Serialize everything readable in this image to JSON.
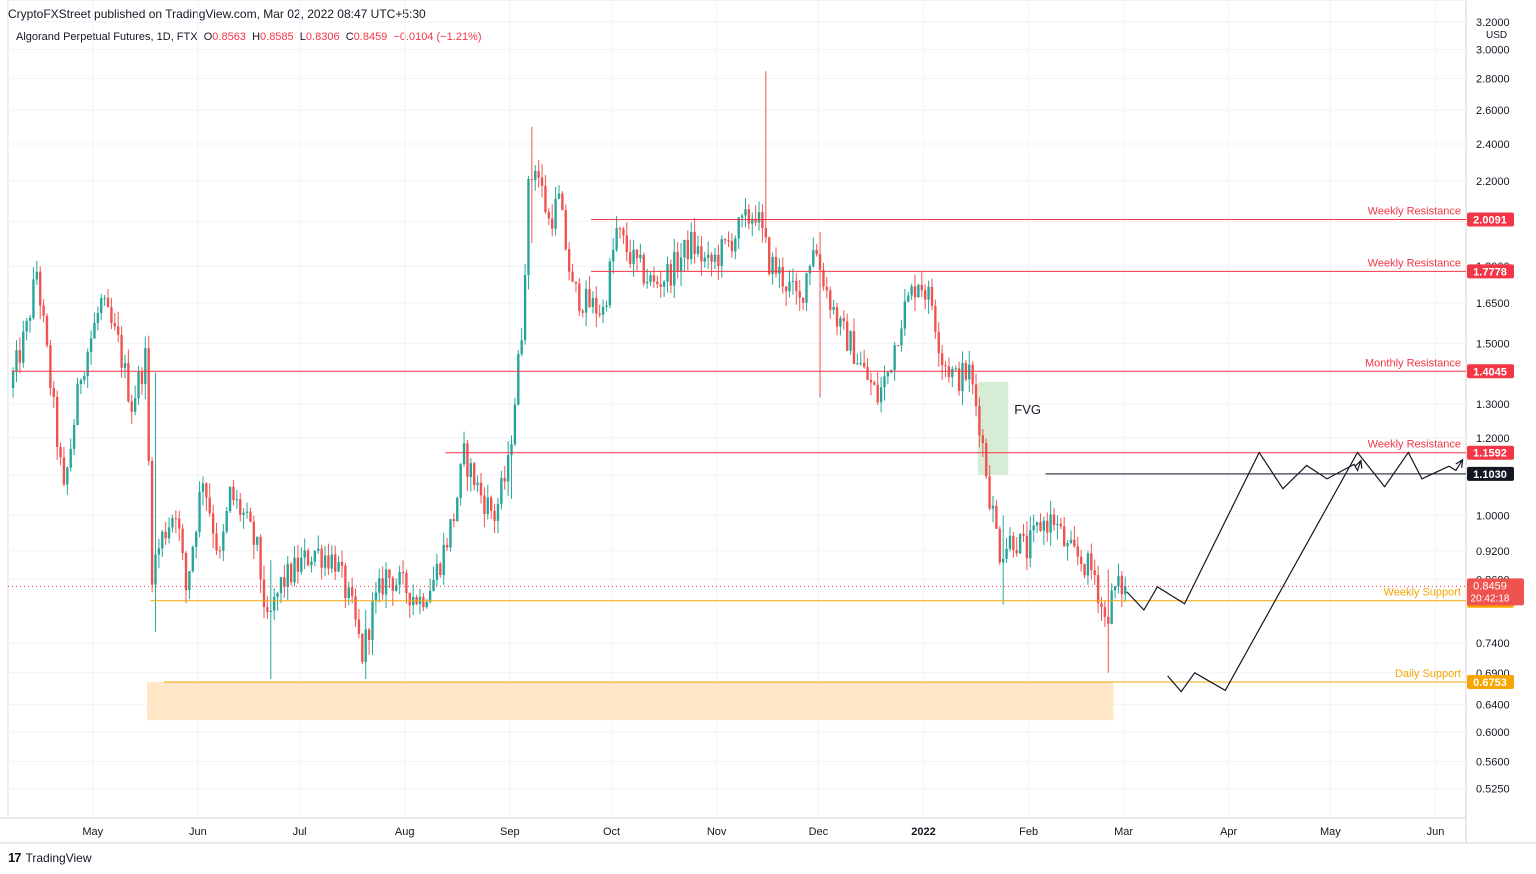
{
  "header": {
    "published": "CryptoFXStreet published on TradingView.com, Mar 02, 2022 08:47 UTC+5:30",
    "symbol": "Algorand Perpetual Futures, 1D, FTX",
    "ohlc": {
      "o_label": "O",
      "o": "0.8563",
      "h_label": "H",
      "h": "0.8585",
      "l_label": "L",
      "l": "0.8306",
      "c_label": "C",
      "c": "0.8459",
      "change": "−0.0104 (−1.21%)"
    }
  },
  "footer": {
    "brand": "TradingView",
    "logo_mark": "17"
  },
  "colors": {
    "up": "#26a69a",
    "down": "#ef5350",
    "resistance": "#f23645",
    "support": "#f7a600",
    "black_level": "#131722",
    "fvg": "#d6ecd4",
    "zone": "#ffe7c7"
  },
  "chart_data": {
    "type": "candlestick",
    "y_scale": "log",
    "currency": "USD",
    "ylim": [
      0.49,
      3.2
    ],
    "y_ticks": [
      "0.5250",
      "0.5600",
      "0.6000",
      "0.6400",
      "0.6900",
      "0.7400",
      "0.8600",
      "0.9200",
      "1.0000",
      "1.1000",
      "1.2000",
      "1.3000",
      "1.5000",
      "1.6500",
      "1.8000",
      "2.0000",
      "2.2000",
      "2.4000",
      "2.6000",
      "2.8000",
      "3.0000",
      "3.2000"
    ],
    "x_ticks": [
      "May",
      "Jun",
      "Jul",
      "Aug",
      "Sep",
      "Oct",
      "Nov",
      "Dec",
      "2022",
      "Feb",
      "Mar",
      "Apr",
      "May",
      "Jun"
    ],
    "x_tick_dates": [
      "2021-05-01",
      "2021-06-01",
      "2021-07-01",
      "2021-08-01",
      "2021-09-01",
      "2021-10-01",
      "2021-11-01",
      "2021-12-01",
      "2022-01-01",
      "2022-02-01",
      "2022-03-01",
      "2022-04-01",
      "2022-05-01",
      "2022-06-01"
    ],
    "x_range": [
      "2021-04-06",
      "2022-06-10"
    ],
    "price_path": [
      [
        "2021-04-07",
        1.35
      ],
      [
        "2021-04-12",
        1.55
      ],
      [
        "2021-04-15",
        1.78
      ],
      [
        "2021-04-20",
        1.28
      ],
      [
        "2021-04-23",
        1.05
      ],
      [
        "2021-04-28",
        1.4
      ],
      [
        "2021-05-04",
        1.65
      ],
      [
        "2021-05-09",
        1.5
      ],
      [
        "2021-05-13",
        1.3
      ],
      [
        "2021-05-17",
        1.45
      ],
      [
        "2021-05-19",
        0.88
      ],
      [
        "2021-05-22",
        0.95
      ],
      [
        "2021-05-26",
        1.02
      ],
      [
        "2021-05-29",
        0.84
      ],
      [
        "2021-06-03",
        1.1
      ],
      [
        "2021-06-08",
        0.9
      ],
      [
        "2021-06-11",
        1.05
      ],
      [
        "2021-06-15",
        1.0
      ],
      [
        "2021-06-19",
        0.92
      ],
      [
        "2021-06-22",
        0.77
      ],
      [
        "2021-06-26",
        0.85
      ],
      [
        "2021-06-30",
        0.88
      ],
      [
        "2021-07-06",
        0.92
      ],
      [
        "2021-07-12",
        0.9
      ],
      [
        "2021-07-17",
        0.8
      ],
      [
        "2021-07-20",
        0.72
      ],
      [
        "2021-07-23",
        0.8
      ],
      [
        "2021-07-27",
        0.87
      ],
      [
        "2021-08-02",
        0.84
      ],
      [
        "2021-08-06",
        0.82
      ],
      [
        "2021-08-10",
        0.86
      ],
      [
        "2021-08-13",
        0.92
      ],
      [
        "2021-08-16",
        1.0
      ],
      [
        "2021-08-19",
        1.15
      ],
      [
        "2021-08-24",
        1.05
      ],
      [
        "2021-08-28",
        1.0
      ],
      [
        "2021-09-01",
        1.12
      ],
      [
        "2021-09-05",
        1.55
      ],
      [
        "2021-09-07",
        2.15
      ],
      [
        "2021-09-09",
        2.3
      ],
      [
        "2021-09-13",
        2.0
      ],
      [
        "2021-09-16",
        2.1
      ],
      [
        "2021-09-20",
        1.7
      ],
      [
        "2021-09-24",
        1.65
      ],
      [
        "2021-09-29",
        1.62
      ],
      [
        "2021-10-03",
        1.95
      ],
      [
        "2021-10-08",
        1.82
      ],
      [
        "2021-10-14",
        1.72
      ],
      [
        "2021-10-19",
        1.78
      ],
      [
        "2021-10-25",
        1.9
      ],
      [
        "2021-10-30",
        1.8
      ],
      [
        "2021-11-04",
        1.88
      ],
      [
        "2021-11-09",
        1.98
      ],
      [
        "2021-11-13",
        2.05
      ],
      [
        "2021-11-17",
        1.82
      ],
      [
        "2021-11-21",
        1.75
      ],
      [
        "2021-11-26",
        1.65
      ],
      [
        "2021-11-30",
        1.9
      ],
      [
        "2021-12-04",
        1.7
      ],
      [
        "2021-12-08",
        1.55
      ],
      [
        "2021-12-11",
        1.5
      ],
      [
        "2021-12-15",
        1.4
      ],
      [
        "2021-12-19",
        1.32
      ],
      [
        "2021-12-22",
        1.4
      ],
      [
        "2021-12-26",
        1.6
      ],
      [
        "2021-12-31",
        1.75
      ],
      [
        "2022-01-04",
        1.65
      ],
      [
        "2022-01-07",
        1.45
      ],
      [
        "2022-01-11",
        1.38
      ],
      [
        "2022-01-15",
        1.4
      ],
      [
        "2022-01-18",
        1.25
      ],
      [
        "2022-01-21",
        1.05
      ],
      [
        "2022-01-24",
        0.92
      ],
      [
        "2022-01-28",
        0.95
      ],
      [
        "2022-02-01",
        0.92
      ],
      [
        "2022-02-05",
        0.98
      ],
      [
        "2022-02-09",
        0.99
      ],
      [
        "2022-02-13",
        0.92
      ],
      [
        "2022-02-17",
        0.9
      ],
      [
        "2022-02-21",
        0.87
      ],
      [
        "2022-02-24",
        0.78
      ],
      [
        "2022-02-27",
        0.84
      ],
      [
        "2022-03-01",
        0.8459
      ]
    ],
    "wicks": [
      {
        "date": "2021-11-15",
        "high": 2.85,
        "low": 1.9
      },
      {
        "date": "2021-09-07",
        "high": 2.5,
        "low": 1.9
      },
      {
        "date": "2021-05-19",
        "high": 1.4,
        "low": 0.76
      },
      {
        "date": "2021-06-22",
        "high": 0.9,
        "low": 0.68
      },
      {
        "date": "2021-07-20",
        "high": 0.8,
        "low": 0.68
      },
      {
        "date": "2022-01-24",
        "high": 1.0,
        "low": 0.81
      },
      {
        "date": "2022-02-24",
        "high": 0.88,
        "low": 0.69
      },
      {
        "date": "2021-12-01",
        "high": 1.95,
        "low": 1.32
      },
      {
        "date": "2021-09-01",
        "high": 1.15,
        "low": 1.04
      }
    ],
    "levels": [
      {
        "label": "Weekly Resistance",
        "value": 2.0091,
        "tag": "2.0091",
        "color": "#f23645",
        "from": "2021-09-25"
      },
      {
        "label": "Weekly Resistance",
        "value": 1.7778,
        "tag": "1.7778",
        "color": "#f23645",
        "from": "2021-09-25"
      },
      {
        "label": "Monthly Resistance",
        "value": 1.4045,
        "tag": "1.4045",
        "color": "#f23645",
        "from": "2021-04-07"
      },
      {
        "label": "Weekly Resistance",
        "value": 1.1592,
        "tag": "1.1592",
        "color": "#f23645",
        "from": "2021-08-13"
      },
      {
        "label": "",
        "value": 1.103,
        "tag": "1.1030",
        "color": "#131722",
        "from": "2022-02-06"
      },
      {
        "label": "Weekly Support",
        "value": 0.8178,
        "tag": "0.8178",
        "color": "#f7a600",
        "from": "2021-05-18"
      },
      {
        "label": "Daily Support",
        "value": 0.6753,
        "tag": "0.6753",
        "color": "#f7a600",
        "from": "2021-05-22"
      }
    ],
    "current_price": {
      "value": 0.8459,
      "tag": "0.8459",
      "countdown": "20:42:18"
    },
    "fvg": {
      "label": "FVG",
      "x_from": "2022-01-17",
      "x_to": "2022-01-26",
      "y_from": 1.1,
      "y_to": 1.37
    },
    "demand_zone": {
      "x_from": "2021-05-17",
      "x_to": "2022-02-26",
      "y_from": 0.617,
      "y_to": 0.675
    },
    "projection_paths": [
      [
        [
          "2022-03-02",
          0.835
        ],
        [
          "2022-03-07",
          0.8
        ],
        [
          "2022-03-11",
          0.845
        ],
        [
          "2022-03-19",
          0.812
        ],
        [
          "2022-04-10",
          1.16
        ],
        [
          "2022-04-17",
          1.065
        ],
        [
          "2022-04-24",
          1.125
        ],
        [
          "2022-04-30",
          1.09
        ],
        [
          "2022-05-08",
          1.128
        ],
        [
          "2022-05-09",
          1.112
        ],
        [
          "2022-05-10",
          1.138
        ]
      ],
      [
        [
          "2022-03-14",
          0.685
        ],
        [
          "2022-03-18",
          0.66
        ],
        [
          "2022-03-22",
          0.69
        ],
        [
          "2022-03-31",
          0.662
        ],
        [
          "2022-05-09",
          1.16
        ],
        [
          "2022-05-17",
          1.07
        ],
        [
          "2022-05-24",
          1.16
        ],
        [
          "2022-05-28",
          1.09
        ],
        [
          "2022-06-05",
          1.123
        ],
        [
          "2022-06-07",
          1.112
        ],
        [
          "2022-06-09",
          1.14
        ]
      ]
    ]
  }
}
